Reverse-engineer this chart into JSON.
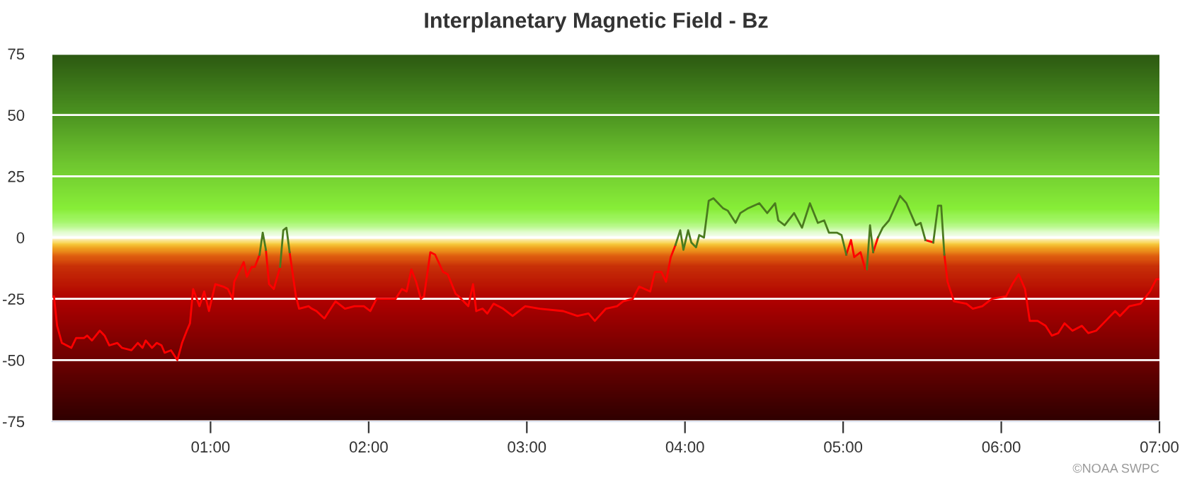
{
  "chart_data": {
    "type": "line",
    "title": "Interplanetary Magnetic Field - Bz",
    "xlim": [
      0,
      7
    ],
    "xticks": [
      {
        "value": 1,
        "label": "01:00"
      },
      {
        "value": 2,
        "label": "02:00"
      },
      {
        "value": 3,
        "label": "03:00"
      },
      {
        "value": 4,
        "label": "04:00"
      },
      {
        "value": 5,
        "label": "05:00"
      },
      {
        "value": 6,
        "label": "06:00"
      },
      {
        "value": 7,
        "label": "07:00"
      }
    ],
    "ylim": [
      -75,
      75
    ],
    "yticks": [
      -75,
      -50,
      -25,
      0,
      25,
      50,
      75
    ],
    "grid": "y",
    "legend": false,
    "marker": "none",
    "line_style": "solid",
    "annotations": [
      "©NOAA SWPC"
    ],
    "series": [
      {
        "color": "#ff0000",
        "x": [
          0.01,
          0.03,
          0.06,
          0.12,
          0.15,
          0.2,
          0.22,
          0.25,
          0.3,
          0.33,
          0.36,
          0.41,
          0.44,
          0.5,
          0.54,
          0.57,
          0.59,
          0.63,
          0.66,
          0.69,
          0.71,
          0.75,
          0.79,
          0.82,
          0.85,
          0.87,
          0.89,
          0.93,
          0.96,
          0.99,
          1.03,
          1.08,
          1.11,
          1.14,
          1.15,
          1.18,
          1.21,
          1.23,
          1.26,
          1.28,
          1.31,
          1.33,
          1.35,
          1.37,
          1.4,
          1.44,
          1.46,
          1.48,
          1.5,
          1.54,
          1.56,
          1.62,
          1.64,
          1.67,
          1.72,
          1.75,
          1.79,
          1.85,
          1.91,
          1.97,
          2.01,
          2.05,
          2.09,
          2.17,
          2.21,
          2.24,
          2.27,
          2.3,
          2.33,
          2.35,
          2.39,
          2.42,
          2.47,
          2.5,
          2.55,
          2.57,
          2.63,
          2.66,
          2.68,
          2.72,
          2.75,
          2.79,
          2.85,
          2.91,
          2.99,
          3.08,
          3.23,
          3.32,
          3.39,
          3.43,
          3.5,
          3.57,
          3.61,
          3.67,
          3.71,
          3.78,
          3.81,
          3.85,
          3.88,
          3.91,
          3.94,
          3.97,
          3.99,
          4.02,
          4.04,
          4.07,
          4.09,
          4.12,
          4.15,
          4.99,
          5.02,
          5.05,
          5.07,
          5.11,
          5.14,
          5.15,
          5.17,
          5.19,
          5.22,
          5.25,
          5.52,
          5.57,
          5.6,
          5.62,
          5.64,
          5.66,
          5.7,
          5.78,
          5.82,
          5.88,
          5.94,
          6.03,
          6.07,
          6.11,
          6.15,
          6.18,
          6.23,
          6.28,
          6.32,
          6.36,
          6.4,
          6.45,
          6.51,
          6.55,
          6.6,
          6.66,
          6.72,
          6.75,
          6.81,
          6.88,
          6.94,
          6.98,
          7.0
        ],
        "values": [
          -24,
          -36,
          -43,
          -45,
          -41,
          -41,
          -40,
          -42,
          -38,
          -40,
          -44,
          -43,
          -45,
          -46,
          -43,
          -45,
          -42,
          -45,
          -43,
          -44,
          -47,
          -46,
          -50,
          -43,
          -38,
          -35,
          -21,
          -28,
          -22,
          -30,
          -19,
          -20,
          -21,
          -25,
          -18,
          -14,
          -10,
          -16,
          -12,
          -12,
          -7,
          null,
          -5,
          -19,
          -21,
          -12,
          null,
          null,
          -6,
          -24,
          -29,
          -28,
          -29,
          -30,
          -33,
          -30,
          -26,
          -29,
          -28,
          -28,
          -30,
          -25,
          -25,
          -25,
          -21,
          -22,
          -13,
          -18,
          -25,
          -24,
          -6,
          -7,
          -14,
          -15,
          -23,
          -24,
          -28,
          -19,
          -30,
          -29,
          -31,
          -27,
          -29,
          -32,
          -28,
          -29,
          -30,
          -32,
          -31,
          -34,
          -29,
          -28,
          -26,
          -25,
          -20,
          -22,
          -14,
          -14,
          -18,
          -8,
          -3,
          null,
          null,
          null,
          null,
          null,
          null,
          null,
          null,
          null,
          -7,
          -1,
          -8,
          -6,
          -13,
          -13,
          null,
          -6,
          0,
          null,
          -1,
          -2,
          null,
          null,
          -7,
          -18,
          -26,
          -27,
          -29,
          -28,
          -25,
          -24,
          -19,
          -15,
          -21,
          -34,
          -34,
          -36,
          -40,
          -39,
          -35,
          -38,
          -36,
          -39,
          -38,
          -34,
          -30,
          -32,
          -28,
          -27,
          -22,
          -17,
          -17
        ]
      },
      {
        "color": "#4a7a1e",
        "x": [
          1.31,
          1.33,
          1.35,
          1.36,
          1.44,
          1.46,
          1.48,
          1.5,
          1.52,
          3.94,
          3.97,
          3.99,
          4.02,
          4.04,
          4.07,
          4.09,
          4.12,
          4.15,
          4.18,
          4.24,
          4.27,
          4.32,
          4.35,
          4.4,
          4.47,
          4.52,
          4.57,
          4.59,
          4.63,
          4.69,
          4.74,
          4.79,
          4.84,
          4.88,
          4.91,
          4.96,
          4.99,
          5.02,
          5.1,
          5.15,
          5.17,
          5.19,
          5.205,
          5.22,
          5.25,
          5.29,
          5.36,
          5.4,
          5.46,
          5.49,
          5.52,
          5.545,
          5.57,
          5.6,
          5.62,
          5.64
        ],
        "values": [
          -7,
          2,
          -5,
          null,
          -12,
          3,
          4,
          -6,
          null,
          -3,
          3,
          -5,
          3,
          -2,
          -4,
          1,
          0,
          15,
          16,
          12,
          11,
          6,
          10,
          12,
          14,
          10,
          14,
          7,
          5,
          10,
          4,
          14,
          6,
          7,
          2,
          2,
          1,
          -7,
          null,
          -13,
          5,
          -6,
          null,
          0,
          4,
          7,
          17,
          14,
          5,
          6,
          -1,
          null,
          -2,
          13,
          13,
          -7
        ]
      }
    ]
  }
}
